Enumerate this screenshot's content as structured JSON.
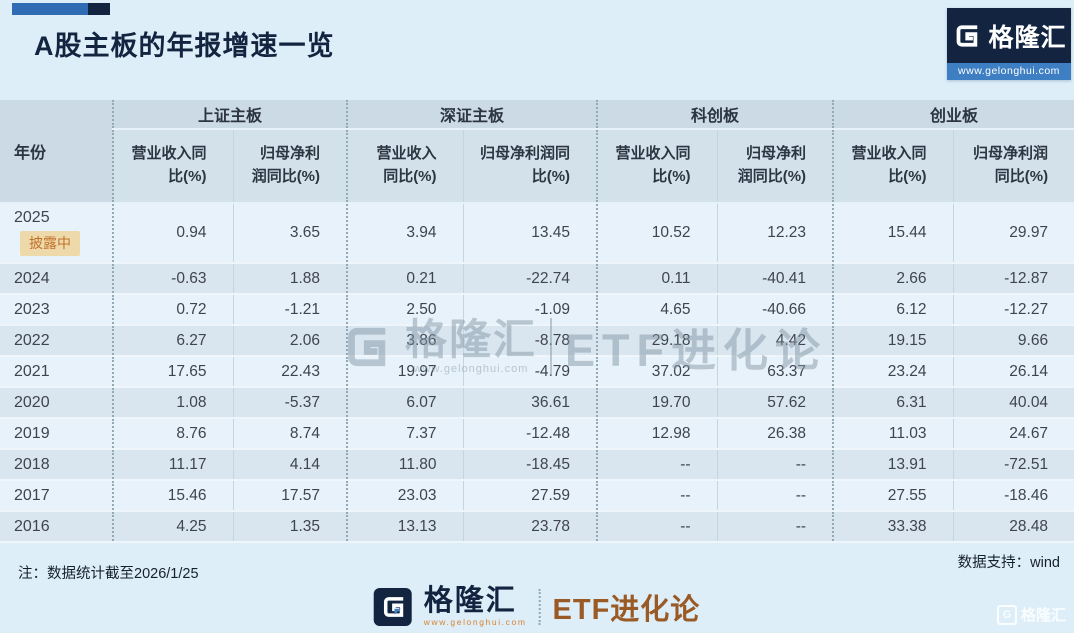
{
  "header": {
    "title": "A股主板的年报增速一览",
    "logo": {
      "brand": "格隆汇",
      "url": "www.gelonghui.com"
    }
  },
  "table": {
    "year_header": "年份",
    "groups": [
      {
        "label": "上证主板",
        "sub": [
          "营业收入同比(%)",
          "归母净利润同比(%)"
        ]
      },
      {
        "label": "深证主板",
        "sub": [
          "营业收入同比(%)",
          "归母净利润同比(%)"
        ]
      },
      {
        "label": "科创板",
        "sub": [
          "营业收入同比(%)",
          "归母净利润同比(%)"
        ]
      },
      {
        "label": "创业板",
        "sub": [
          "营业收入同比(%)",
          "归母净利润同比(%)"
        ]
      }
    ],
    "rows": [
      {
        "year": "2025",
        "badge": "披露中",
        "values": [
          "0.94",
          "3.65",
          "3.94",
          "13.45",
          "10.52",
          "12.23",
          "15.44",
          "29.97"
        ]
      },
      {
        "year": "2024",
        "values": [
          "-0.63",
          "1.88",
          "0.21",
          "-22.74",
          "0.11",
          "-40.41",
          "2.66",
          "-12.87"
        ]
      },
      {
        "year": "2023",
        "values": [
          "0.72",
          "-1.21",
          "2.50",
          "-1.09",
          "4.65",
          "-40.66",
          "6.12",
          "-12.27"
        ]
      },
      {
        "year": "2022",
        "values": [
          "6.27",
          "2.06",
          "3.86",
          "-8.78",
          "29.18",
          "4.42",
          "19.15",
          "9.66"
        ]
      },
      {
        "year": "2021",
        "values": [
          "17.65",
          "22.43",
          "19.97",
          "-4.79",
          "37.02",
          "63.37",
          "23.24",
          "26.14"
        ]
      },
      {
        "year": "2020",
        "values": [
          "1.08",
          "-5.37",
          "6.07",
          "36.61",
          "19.70",
          "57.62",
          "6.31",
          "40.04"
        ]
      },
      {
        "year": "2019",
        "values": [
          "8.76",
          "8.74",
          "7.37",
          "-12.48",
          "12.98",
          "26.38",
          "11.03",
          "24.67"
        ]
      },
      {
        "year": "2018",
        "values": [
          "11.17",
          "4.14",
          "11.80",
          "-18.45",
          "--",
          "--",
          "13.91",
          "-72.51"
        ]
      },
      {
        "year": "2017",
        "values": [
          "15.46",
          "17.57",
          "23.03",
          "27.59",
          "--",
          "--",
          "27.55",
          "-18.46"
        ]
      },
      {
        "year": "2016",
        "values": [
          "4.25",
          "1.35",
          "13.13",
          "23.78",
          "--",
          "--",
          "33.38",
          "28.48"
        ]
      }
    ]
  },
  "watermark": {
    "brand": "格隆汇",
    "url": "www.gelonghui.com",
    "name": "ETF进化论"
  },
  "corner_watermark": {
    "brand": "格隆汇",
    "g": "G"
  },
  "footer": {
    "note": "注：数据统计截至2026/1/25",
    "source": "数据支持：wind",
    "brand": "格隆汇",
    "brand_url": "www.gelonghui.com",
    "channel": "ETF进化论"
  },
  "colors": {
    "background": "#ddeef9",
    "navy": "#132440",
    "logo_strip_blue": "#3e7ec2",
    "header_bg": "#ccdae5",
    "subheader_bg": "#d3e1ea",
    "row_light": "#e7f2fa",
    "row_dark": "#d9e5ef",
    "badge_bg": "#edd9a9",
    "badge_text": "#c2722b",
    "etf_brown": "#9a5a26",
    "url_orange": "#d9822e"
  },
  "chart_data": {
    "type": "table",
    "title": "A股主板的年报增速一览",
    "categories": [
      "2025",
      "2024",
      "2023",
      "2022",
      "2021",
      "2020",
      "2019",
      "2018",
      "2017",
      "2016"
    ],
    "series": [
      {
        "name": "上证主板-营业收入同比(%)",
        "values": [
          0.94,
          -0.63,
          0.72,
          6.27,
          17.65,
          1.08,
          8.76,
          11.17,
          15.46,
          4.25
        ]
      },
      {
        "name": "上证主板-归母净利润同比(%)",
        "values": [
          3.65,
          1.88,
          -1.21,
          2.06,
          22.43,
          -5.37,
          8.74,
          4.14,
          17.57,
          1.35
        ]
      },
      {
        "name": "深证主板-营业收入同比(%)",
        "values": [
          3.94,
          0.21,
          2.5,
          3.86,
          19.97,
          6.07,
          7.37,
          11.8,
          23.03,
          13.13
        ]
      },
      {
        "name": "深证主板-归母净利润同比(%)",
        "values": [
          13.45,
          -22.74,
          -1.09,
          -8.78,
          -4.79,
          36.61,
          -12.48,
          -18.45,
          27.59,
          23.78
        ]
      },
      {
        "name": "科创板-营业收入同比(%)",
        "values": [
          10.52,
          0.11,
          4.65,
          29.18,
          37.02,
          19.7,
          12.98,
          null,
          null,
          null
        ]
      },
      {
        "name": "科创板-归母净利润同比(%)",
        "values": [
          12.23,
          -40.41,
          -40.66,
          4.42,
          63.37,
          57.62,
          26.38,
          null,
          null,
          null
        ]
      },
      {
        "name": "创业板-营业收入同比(%)",
        "values": [
          15.44,
          2.66,
          6.12,
          19.15,
          23.24,
          6.31,
          11.03,
          13.91,
          27.55,
          33.38
        ]
      },
      {
        "name": "创业板-归母净利润同比(%)",
        "values": [
          29.97,
          -12.87,
          -12.27,
          9.66,
          26.14,
          40.04,
          24.67,
          -72.51,
          -18.46,
          28.48
        ]
      }
    ],
    "annotations": [
      "2025 披露中"
    ],
    "notes": [
      "注：数据统计截至2026/1/25",
      "数据支持：wind"
    ]
  }
}
